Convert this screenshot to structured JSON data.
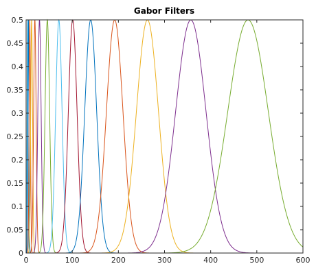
{
  "chart_data": {
    "type": "line",
    "title": "Gabor Filters",
    "xlabel": "",
    "ylabel": "",
    "xlim": [
      0,
      600
    ],
    "ylim": [
      0,
      0.5
    ],
    "xticks": [
      0,
      100,
      200,
      300,
      400,
      500,
      600
    ],
    "xtick_labels": [
      "0",
      "100",
      "200",
      "300",
      "400",
      "500",
      "600"
    ],
    "yticks": [
      0,
      0.05,
      0.1,
      0.15,
      0.2,
      0.25,
      0.3,
      0.35,
      0.4,
      0.45,
      0.5
    ],
    "ytick_labels": [
      "0",
      "0.05",
      "0.1",
      "0.15",
      "0.2",
      "0.25",
      "0.3",
      "0.35",
      "0.4",
      "0.45",
      "0.5"
    ],
    "grid": false,
    "legend": "none",
    "series_shape": "gaussian peak of height 0.5",
    "series": [
      {
        "peak_x": 3,
        "sigma": 1.0,
        "color": "#4DBEEE"
      },
      {
        "peak_x": 5,
        "sigma": 1.2,
        "color": "#0072BD"
      },
      {
        "peak_x": 8,
        "sigma": 1.5,
        "color": "#D95319"
      },
      {
        "peak_x": 12,
        "sigma": 2.0,
        "color": "#EDB120"
      },
      {
        "peak_x": 19,
        "sigma": 2.7,
        "color": "#D95319"
      },
      {
        "peak_x": 29,
        "sigma": 3.6,
        "color": "#7E2F8E"
      },
      {
        "peak_x": 46,
        "sigma": 5.0,
        "color": "#77AC30"
      },
      {
        "peak_x": 71,
        "sigma": 7.0,
        "color": "#4DBEEE"
      },
      {
        "peak_x": 101,
        "sigma": 9.5,
        "color": "#A2142F"
      },
      {
        "peak_x": 140,
        "sigma": 13.0,
        "color": "#0072BD"
      },
      {
        "peak_x": 192,
        "sigma": 18.0,
        "color": "#D95319"
      },
      {
        "peak_x": 263,
        "sigma": 24.0,
        "color": "#EDB120"
      },
      {
        "peak_x": 357,
        "sigma": 33.0,
        "color": "#7E2F8E"
      },
      {
        "peak_x": 481,
        "sigma": 44.0,
        "color": "#77AC30"
      }
    ]
  }
}
